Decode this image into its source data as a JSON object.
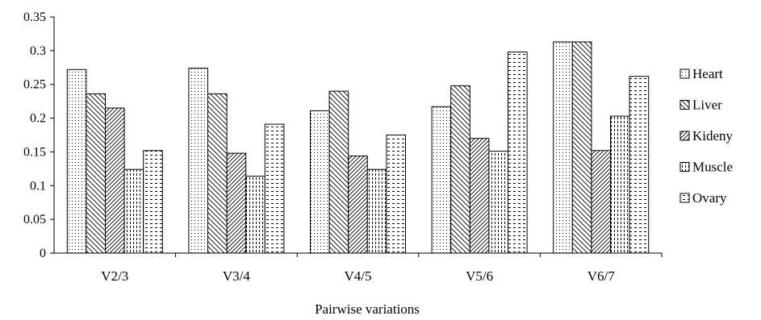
{
  "chart_data": {
    "type": "bar",
    "xlabel": "Pairwise variations",
    "ylabel": "",
    "ylim": [
      0,
      0.35
    ],
    "yticks": [
      "0",
      "0.05",
      "0.1",
      "0.15",
      "0.2",
      "0.25",
      "0.3",
      "0.35"
    ],
    "categories": [
      "V2/3",
      "V3/4",
      "V4/5",
      "V5/6",
      "V6/7"
    ],
    "series": [
      {
        "name": "Heart",
        "values": [
          0.272,
          0.274,
          0.211,
          0.217,
          0.313
        ]
      },
      {
        "name": "Liver",
        "values": [
          0.236,
          0.236,
          0.24,
          0.248,
          0.313
        ]
      },
      {
        "name": "Kideny",
        "values": [
          0.215,
          0.148,
          0.144,
          0.17,
          0.152
        ]
      },
      {
        "name": "Muscle",
        "values": [
          0.124,
          0.114,
          0.124,
          0.151,
          0.203
        ]
      },
      {
        "name": "Ovary",
        "values": [
          0.152,
          0.191,
          0.175,
          0.298,
          0.262
        ]
      }
    ],
    "legend_position": "right",
    "grid": false
  }
}
